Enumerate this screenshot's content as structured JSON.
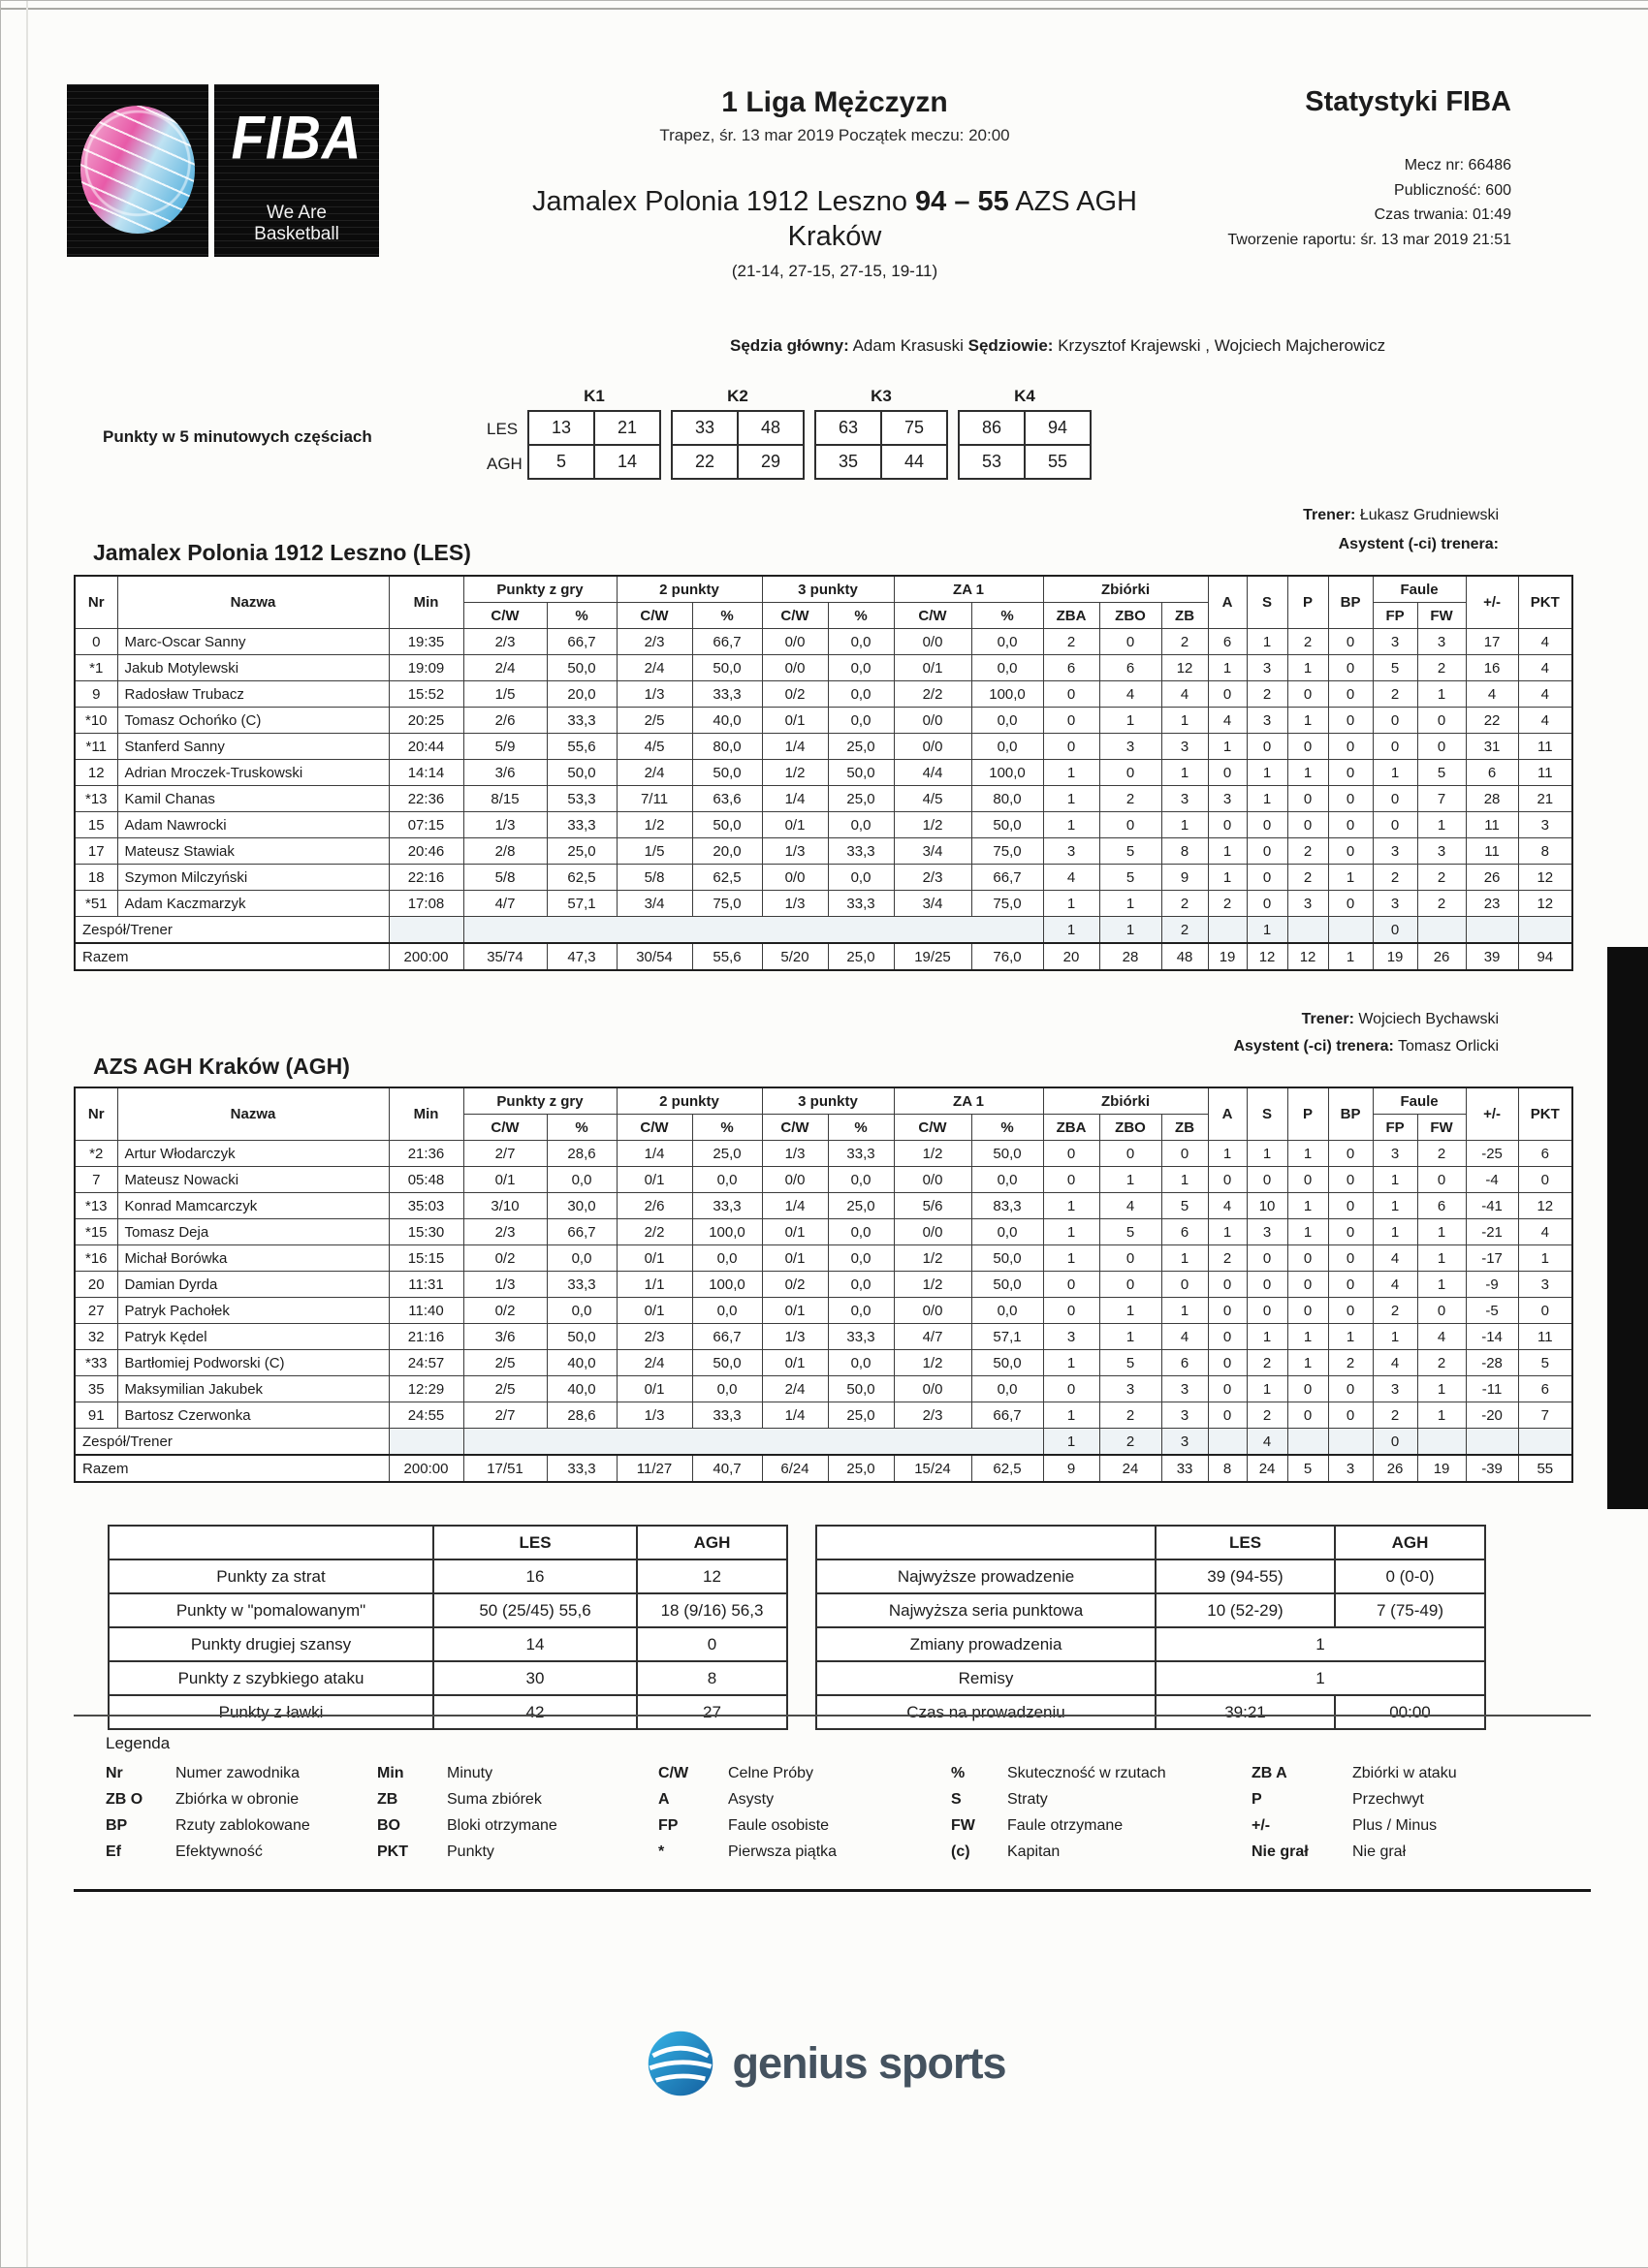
{
  "colors": {
    "logo_pink": "#e85aa8",
    "logo_blue": "#2f9fd6",
    "genius_blue": "#1f8dc4",
    "text": "#1c1c1c"
  },
  "logo": {
    "fiba": "FIBA",
    "tagline": "We Are Basketball"
  },
  "header": {
    "league": "1 Liga Mężczyzn",
    "date_line": "Trapez, śr. 13 mar 2019 Początek meczu: 20:00",
    "home_team": "Jamalex Polonia 1912 Leszno ",
    "score": "94 – 55",
    "away_team": " AZS AGH",
    "city": "Kraków",
    "quarters_line": "(21-14, 27-15, 27-15, 19-11)",
    "stats_title": "Statystyki FIBA",
    "match_no": "Mecz nr: 66486",
    "attendance": "Publiczność: 600",
    "duration": "Czas trwania: 01:49",
    "report_created": "Tworzenie raportu: śr. 13 mar 2019 21:51",
    "referee_label": "Sędzia główny:",
    "referee_name": " Adam Krasuski ",
    "officials_label": "Sędziowie:",
    "officials_names": " Krzysztof Krajewski , Wojciech Majcherowicz"
  },
  "quarters": {
    "label": "Punkty w 5 minutowych częściach",
    "headers": [
      "K1",
      "K2",
      "K3",
      "K4"
    ],
    "rows": [
      {
        "team": "LES",
        "scores": [
          [
            "13",
            "21"
          ],
          [
            "33",
            "48"
          ],
          [
            "63",
            "75"
          ],
          [
            "86",
            "94"
          ]
        ]
      },
      {
        "team": "AGH",
        "scores": [
          [
            "5",
            "14"
          ],
          [
            "22",
            "29"
          ],
          [
            "35",
            "44"
          ],
          [
            "53",
            "55"
          ]
        ]
      }
    ]
  },
  "stat_header": {
    "nr": "Nr",
    "name": "Nazwa",
    "min": "Min",
    "fg": "Punkty z gry",
    "p2": "2 punkty",
    "p3": "3 punkty",
    "ft": "ZA 1",
    "reb": "Zbiórki",
    "cw": "C/W",
    "pct": "%",
    "zba": "ZBA",
    "zbo": "ZBO",
    "zb": "ZB",
    "a": "A",
    "s": "S",
    "p": "P",
    "bp": "BP",
    "fouls": "Faule",
    "fp": "FP",
    "fw": "FW",
    "pm": "+/-",
    "pkt": "PKT"
  },
  "stat_labels": {
    "zespol": "Zespół/Trener",
    "razem": "Razem"
  },
  "teams": [
    {
      "title": "Jamalex Polonia 1912 Leszno (LES)",
      "coach_label": "Trener:",
      "coach": " Łukasz Grudniewski",
      "assistant_label": "Asystent (-ci) trenera:",
      "assistant": "",
      "players": [
        [
          "0",
          "Marc-Oscar Sanny",
          "19:35",
          "2/3",
          "66,7",
          "2/3",
          "66,7",
          "0/0",
          "0,0",
          "0/0",
          "0,0",
          "2",
          "0",
          "2",
          "6",
          "1",
          "2",
          "0",
          "3",
          "3",
          "17",
          "4"
        ],
        [
          "*1",
          "Jakub Motylewski",
          "19:09",
          "2/4",
          "50,0",
          "2/4",
          "50,0",
          "0/0",
          "0,0",
          "0/1",
          "0,0",
          "6",
          "6",
          "12",
          "1",
          "3",
          "1",
          "0",
          "5",
          "2",
          "16",
          "4"
        ],
        [
          "9",
          "Radosław Trubacz",
          "15:52",
          "1/5",
          "20,0",
          "1/3",
          "33,3",
          "0/2",
          "0,0",
          "2/2",
          "100,0",
          "0",
          "4",
          "4",
          "0",
          "2",
          "0",
          "0",
          "2",
          "1",
          "4",
          "4"
        ],
        [
          "*10",
          "Tomasz Ochońko (C)",
          "20:25",
          "2/6",
          "33,3",
          "2/5",
          "40,0",
          "0/1",
          "0,0",
          "0/0",
          "0,0",
          "0",
          "1",
          "1",
          "4",
          "3",
          "1",
          "0",
          "0",
          "0",
          "22",
          "4"
        ],
        [
          "*11",
          "Stanferd Sanny",
          "20:44",
          "5/9",
          "55,6",
          "4/5",
          "80,0",
          "1/4",
          "25,0",
          "0/0",
          "0,0",
          "0",
          "3",
          "3",
          "1",
          "0",
          "0",
          "0",
          "0",
          "0",
          "31",
          "11"
        ],
        [
          "12",
          "Adrian Mroczek-Truskowski",
          "14:14",
          "3/6",
          "50,0",
          "2/4",
          "50,0",
          "1/2",
          "50,0",
          "4/4",
          "100,0",
          "1",
          "0",
          "1",
          "0",
          "1",
          "1",
          "0",
          "1",
          "5",
          "6",
          "11"
        ],
        [
          "*13",
          "Kamil Chanas",
          "22:36",
          "8/15",
          "53,3",
          "7/11",
          "63,6",
          "1/4",
          "25,0",
          "4/5",
          "80,0",
          "1",
          "2",
          "3",
          "3",
          "1",
          "0",
          "0",
          "0",
          "7",
          "28",
          "21"
        ],
        [
          "15",
          "Adam Nawrocki",
          "07:15",
          "1/3",
          "33,3",
          "1/2",
          "50,0",
          "0/1",
          "0,0",
          "1/2",
          "50,0",
          "1",
          "0",
          "1",
          "0",
          "0",
          "0",
          "0",
          "0",
          "1",
          "11",
          "3"
        ],
        [
          "17",
          "Mateusz Stawiak",
          "20:46",
          "2/8",
          "25,0",
          "1/5",
          "20,0",
          "1/3",
          "33,3",
          "3/4",
          "75,0",
          "3",
          "5",
          "8",
          "1",
          "0",
          "2",
          "0",
          "3",
          "3",
          "11",
          "8"
        ],
        [
          "18",
          "Szymon Milczyński",
          "22:16",
          "5/8",
          "62,5",
          "5/8",
          "62,5",
          "0/0",
          "0,0",
          "2/3",
          "66,7",
          "4",
          "5",
          "9",
          "1",
          "0",
          "2",
          "1",
          "2",
          "2",
          "26",
          "12"
        ],
        [
          "*51",
          "Adam Kaczmarzyk",
          "17:08",
          "4/7",
          "57,1",
          "3/4",
          "75,0",
          "1/3",
          "33,3",
          "3/4",
          "75,0",
          "1",
          "1",
          "2",
          "2",
          "0",
          "3",
          "0",
          "3",
          "2",
          "23",
          "12"
        ]
      ],
      "zespol": [
        "1",
        "1",
        "2",
        "",
        "1",
        "",
        "",
        "0"
      ],
      "razem": [
        "200:00",
        "35/74",
        "47,3",
        "30/54",
        "55,6",
        "5/20",
        "25,0",
        "19/25",
        "76,0",
        "20",
        "28",
        "48",
        "19",
        "12",
        "12",
        "1",
        "19",
        "26",
        "39",
        "94"
      ]
    },
    {
      "title": "AZS AGH Kraków (AGH)",
      "coach_label": "Trener:",
      "coach": " Wojciech Bychawski",
      "assistant_label": "Asystent (-ci) trenera:",
      "assistant": " Tomasz Orlicki",
      "players": [
        [
          "*2",
          "Artur Włodarczyk",
          "21:36",
          "2/7",
          "28,6",
          "1/4",
          "25,0",
          "1/3",
          "33,3",
          "1/2",
          "50,0",
          "0",
          "0",
          "0",
          "1",
          "1",
          "1",
          "0",
          "3",
          "2",
          "-25",
          "6"
        ],
        [
          "7",
          "Mateusz Nowacki",
          "05:48",
          "0/1",
          "0,0",
          "0/1",
          "0,0",
          "0/0",
          "0,0",
          "0/0",
          "0,0",
          "0",
          "1",
          "1",
          "0",
          "0",
          "0",
          "0",
          "1",
          "0",
          "-4",
          "0"
        ],
        [
          "*13",
          "Konrad Mamcarczyk",
          "35:03",
          "3/10",
          "30,0",
          "2/6",
          "33,3",
          "1/4",
          "25,0",
          "5/6",
          "83,3",
          "1",
          "4",
          "5",
          "4",
          "10",
          "1",
          "0",
          "1",
          "6",
          "-41",
          "12"
        ],
        [
          "*15",
          "Tomasz Deja",
          "15:30",
          "2/3",
          "66,7",
          "2/2",
          "100,0",
          "0/1",
          "0,0",
          "0/0",
          "0,0",
          "1",
          "5",
          "6",
          "1",
          "3",
          "1",
          "0",
          "1",
          "1",
          "-21",
          "4"
        ],
        [
          "*16",
          "Michał Borówka",
          "15:15",
          "0/2",
          "0,0",
          "0/1",
          "0,0",
          "0/1",
          "0,0",
          "1/2",
          "50,0",
          "1",
          "0",
          "1",
          "2",
          "0",
          "0",
          "0",
          "4",
          "1",
          "-17",
          "1"
        ],
        [
          "20",
          "Damian Dyrda",
          "11:31",
          "1/3",
          "33,3",
          "1/1",
          "100,0",
          "0/2",
          "0,0",
          "1/2",
          "50,0",
          "0",
          "0",
          "0",
          "0",
          "0",
          "0",
          "0",
          "4",
          "1",
          "-9",
          "3"
        ],
        [
          "27",
          "Patryk Pachołek",
          "11:40",
          "0/2",
          "0,0",
          "0/1",
          "0,0",
          "0/1",
          "0,0",
          "0/0",
          "0,0",
          "0",
          "1",
          "1",
          "0",
          "0",
          "0",
          "0",
          "2",
          "0",
          "-5",
          "0"
        ],
        [
          "32",
          "Patryk Kędel",
          "21:16",
          "3/6",
          "50,0",
          "2/3",
          "66,7",
          "1/3",
          "33,3",
          "4/7",
          "57,1",
          "3",
          "1",
          "4",
          "0",
          "1",
          "1",
          "1",
          "1",
          "4",
          "-14",
          "11"
        ],
        [
          "*33",
          "Bartłomiej Podworski (C)",
          "24:57",
          "2/5",
          "40,0",
          "2/4",
          "50,0",
          "0/1",
          "0,0",
          "1/2",
          "50,0",
          "1",
          "5",
          "6",
          "0",
          "2",
          "1",
          "2",
          "4",
          "2",
          "-28",
          "5"
        ],
        [
          "35",
          "Maksymilian Jakubek",
          "12:29",
          "2/5",
          "40,0",
          "0/1",
          "0,0",
          "2/4",
          "50,0",
          "0/0",
          "0,0",
          "0",
          "3",
          "3",
          "0",
          "1",
          "0",
          "0",
          "3",
          "1",
          "-11",
          "6"
        ],
        [
          "91",
          "Bartosz Czerwonka",
          "24:55",
          "2/7",
          "28,6",
          "1/3",
          "33,3",
          "1/4",
          "25,0",
          "2/3",
          "66,7",
          "1",
          "2",
          "3",
          "0",
          "2",
          "0",
          "0",
          "2",
          "1",
          "-20",
          "7"
        ]
      ],
      "zespol": [
        "1",
        "2",
        "3",
        "",
        "4",
        "",
        "",
        "0"
      ],
      "razem": [
        "200:00",
        "17/51",
        "33,3",
        "11/27",
        "40,7",
        "6/24",
        "25,0",
        "15/24",
        "62,5",
        "9",
        "24",
        "33",
        "8",
        "24",
        "5",
        "3",
        "26",
        "19",
        "-39",
        "55"
      ]
    }
  ],
  "summary_left": {
    "col_les": "LES",
    "col_agh": "AGH",
    "rows": [
      [
        "Punkty za strat",
        "16",
        "12"
      ],
      [
        "Punkty w \"pomalowanym\"",
        "50 (25/45) 55,6",
        "18 (9/16) 56,3"
      ],
      [
        "Punkty drugiej szansy",
        "14",
        "0"
      ],
      [
        "Punkty z szybkiego ataku",
        "30",
        "8"
      ],
      [
        "Punkty z ławki",
        "42",
        "27"
      ]
    ]
  },
  "summary_right": {
    "col_les": "LES",
    "col_agh": "AGH",
    "rows": [
      [
        "Najwyższe prowadzenie",
        "39 (94-55)",
        "0 (0-0)"
      ],
      [
        "Najwyższa seria punktowa",
        "10 (52-29)",
        "7 (75-49)"
      ],
      [
        "Zmiany prowadzenia",
        "1"
      ],
      [
        "Remisy",
        "1"
      ],
      [
        "Czas na prowadzeniu",
        "39:21",
        "00:00"
      ]
    ]
  },
  "legend": {
    "title": "Legenda",
    "rows": [
      [
        [
          "Nr",
          "Numer zawodnika"
        ],
        [
          "Min",
          "Minuty"
        ],
        [
          "C/W",
          "Celne Próby"
        ],
        [
          "%",
          "Skuteczność w rzutach"
        ],
        [
          "ZB A",
          "Zbiórki w ataku"
        ]
      ],
      [
        [
          "ZB O",
          "Zbiórka w obronie"
        ],
        [
          "ZB",
          "Suma zbiórek"
        ],
        [
          "A",
          "Asysty"
        ],
        [
          "S",
          "Straty"
        ],
        [
          "P",
          "Przechwyt"
        ]
      ],
      [
        [
          "BP",
          "Rzuty zablokowane"
        ],
        [
          "BO",
          "Bloki otrzymane"
        ],
        [
          "FP",
          "Faule osobiste"
        ],
        [
          "FW",
          "Faule otrzymane"
        ],
        [
          "+/-",
          "Plus / Minus"
        ]
      ],
      [
        [
          "Ef",
          "Efektywność"
        ],
        [
          "PKT",
          "Punkty"
        ],
        [
          "*",
          "Pierwsza piątka"
        ],
        [
          "(c)",
          "Kapitan"
        ],
        [
          "Nie grał",
          "Nie grał"
        ]
      ]
    ]
  },
  "footer": {
    "brand": "genius sports"
  }
}
